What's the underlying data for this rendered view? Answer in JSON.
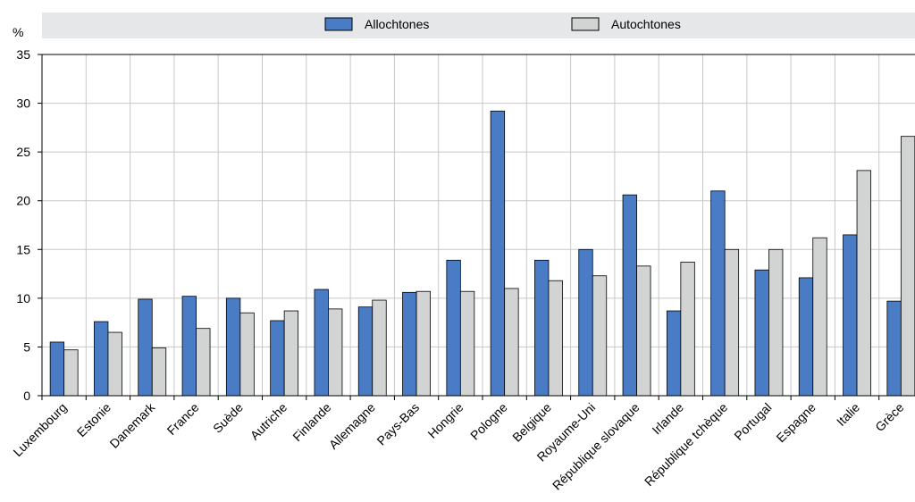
{
  "chart_data": {
    "type": "bar",
    "unit_label": "%",
    "ylim": [
      0,
      35
    ],
    "yticks": [
      0,
      5,
      10,
      15,
      20,
      25,
      30,
      35
    ],
    "grid": true,
    "legend_position": "top",
    "categories": [
      "Luxembourg",
      "Estonie",
      "Danemark",
      "France",
      "Suède",
      "Autriche",
      "Finlande",
      "Allemagne",
      "Pays-Bas",
      "Hongrie",
      "Pologne",
      "Belgique",
      "Royaume-Uni",
      "République slovaque",
      "Irlande",
      "République tchèque",
      "Portugal",
      "Espagne",
      "Italie",
      "Grèce"
    ],
    "series": [
      {
        "name": "Allochtones",
        "color": "#4a7cc6",
        "values": [
          5.5,
          7.6,
          9.9,
          10.2,
          10.0,
          7.7,
          10.9,
          9.1,
          10.6,
          13.9,
          29.2,
          13.9,
          15.0,
          20.6,
          8.7,
          21.0,
          12.9,
          12.1,
          16.5,
          9.7
        ]
      },
      {
        "name": "Autochtones",
        "color": "#d2d4d3",
        "values": [
          4.7,
          6.5,
          4.9,
          6.9,
          8.5,
          8.7,
          8.9,
          9.8,
          10.7,
          10.7,
          11.0,
          11.8,
          12.3,
          13.3,
          13.7,
          15.0,
          15.0,
          16.2,
          23.1,
          26.6
        ]
      }
    ]
  }
}
